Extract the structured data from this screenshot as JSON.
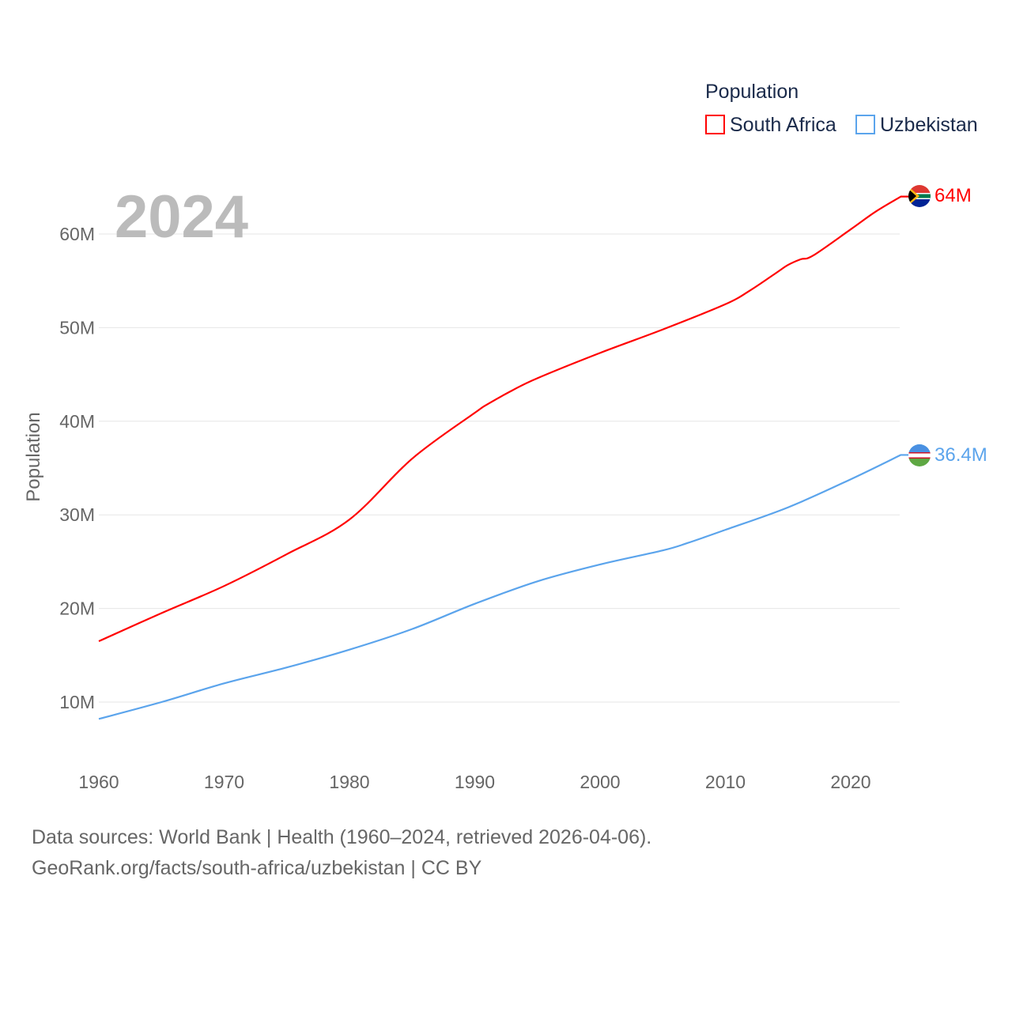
{
  "chart_data": {
    "type": "line",
    "title": "Population",
    "year_label": "2024",
    "xlabel": "",
    "ylabel": "Population",
    "xlim": [
      1960,
      2024
    ],
    "ylim": [
      0,
      65000000
    ],
    "x_ticks": [
      1960,
      1970,
      1980,
      1990,
      2000,
      2010,
      2020
    ],
    "x_tick_labels": [
      "1960",
      "1970",
      "1980",
      "1990",
      "2000",
      "2010",
      "2020"
    ],
    "y_ticks": [
      10000000,
      20000000,
      30000000,
      40000000,
      50000000,
      60000000
    ],
    "y_tick_labels": [
      "10M",
      "20M",
      "30M",
      "40M",
      "50M",
      "60M"
    ],
    "grid": true,
    "legend_title": "Population",
    "legend_placement": "top-right",
    "series": [
      {
        "name": "South Africa",
        "color": "#ff0000",
        "end_label": "64M",
        "flag": "south-africa-flag",
        "x": [
          1960,
          1965,
          1970,
          1975,
          1980,
          1985,
          1990,
          1991,
          1993,
          1995,
          2000,
          2005,
          2010,
          2012,
          2014,
          2015,
          2016,
          2017,
          2020,
          2022,
          2024
        ],
        "values": [
          16500000,
          19500000,
          22400000,
          25800000,
          29500000,
          36000000,
          40900000,
          41800000,
          43300000,
          44600000,
          47300000,
          49800000,
          52500000,
          54000000,
          55800000,
          56700000,
          57300000,
          57700000,
          60500000,
          62400000,
          64000000
        ]
      },
      {
        "name": "Uzbekistan",
        "color": "#5ba4ec",
        "end_label": "36.4M",
        "flag": "uzbekistan-flag",
        "x": [
          1960,
          1965,
          1970,
          1975,
          1980,
          1985,
          1990,
          1995,
          2000,
          2005,
          2007,
          2010,
          2015,
          2020,
          2024
        ],
        "values": [
          8200000,
          10000000,
          12000000,
          13700000,
          15600000,
          17800000,
          20500000,
          22900000,
          24700000,
          26200000,
          27000000,
          28400000,
          30800000,
          33800000,
          36400000
        ]
      }
    ]
  },
  "footer": {
    "line1": "Data sources: World Bank | Health (1960–2024, retrieved 2026-04-06).",
    "line2": "GeoRank.org/facts/south-africa/uzbekistan | CC BY"
  }
}
